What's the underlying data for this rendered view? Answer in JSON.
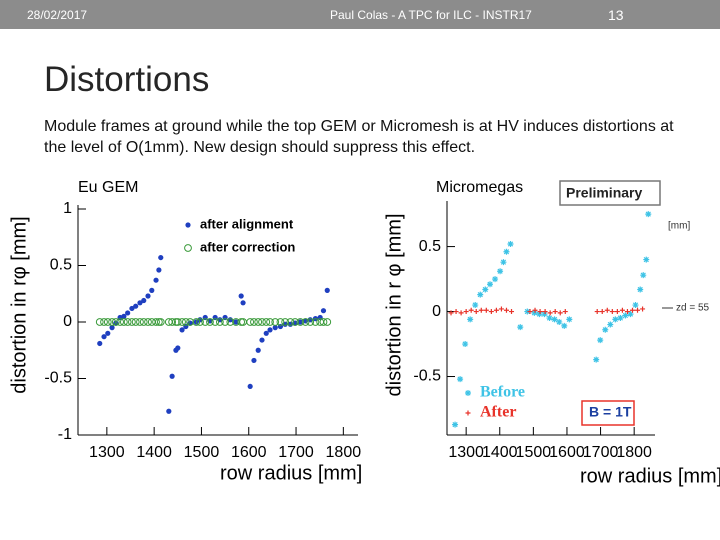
{
  "header": {
    "date": "28/02/2017",
    "footer": "Paul Colas - A TPC for ILC - INSTR17",
    "page": "13"
  },
  "title": "Distortions",
  "body": "Module frames at ground while the top GEM or Micromesh is at HV induces distortions at the level of O(1mm). New design should suppress this effect.",
  "chart_data": [
    {
      "type": "scatter",
      "title": "Eu GEM",
      "x_label": "row radius [mm]",
      "y_label": "distortion in rφ [mm]",
      "xlim": [
        1239,
        1831
      ],
      "xticks": [
        1300,
        1400,
        1500,
        1600,
        1700,
        1800
      ],
      "ylim": [
        -1,
        1
      ],
      "yticks": [
        -1,
        -0.5,
        0,
        0.5,
        1
      ],
      "legend": "upper right",
      "x": [
        1285,
        1294,
        1302,
        1311,
        1319,
        1328,
        1336,
        1344,
        1353,
        1361,
        1370,
        1378,
        1387,
        1395,
        1404,
        1410,
        1414,
        1431,
        1438,
        1446,
        1450,
        1459,
        1467,
        1476,
        1489,
        1497,
        1508,
        1518,
        1529,
        1539,
        1550,
        1561,
        1573,
        1584,
        1588,
        1603,
        1611,
        1620,
        1628,
        1637,
        1645,
        1656,
        1667,
        1677,
        1688,
        1698,
        1709,
        1720,
        1730,
        1741,
        1751,
        1758,
        1766
      ],
      "series": [
        {
          "name": "after alignment",
          "color": "#1f3fc0",
          "marker": "dot",
          "values": [
            -0.19,
            -0.13,
            -0.1,
            -0.05,
            -0.01,
            0.04,
            0.05,
            0.08,
            0.12,
            0.14,
            0.17,
            0.19,
            0.23,
            0.28,
            0.37,
            0.46,
            0.57,
            -0.79,
            -0.48,
            -0.25,
            -0.23,
            -0.07,
            -0.04,
            -0.01,
            0,
            0.02,
            0.04,
            0.01,
            0.04,
            0.02,
            0.04,
            0.02,
            0,
            0.23,
            0.17,
            -0.57,
            -0.34,
            -0.25,
            -0.16,
            -0.1,
            -0.07,
            -0.05,
            -0.04,
            -0.02,
            -0.02,
            -0.01,
            0,
            0.01,
            0.02,
            0.03,
            0.04,
            0.1,
            0.28
          ]
        },
        {
          "name": "after correction",
          "color": "#3a9a3a",
          "marker": "circle",
          "values": [
            0,
            0,
            0,
            0,
            0,
            0,
            0,
            0,
            0,
            0,
            0,
            0,
            0,
            0,
            0,
            0,
            0,
            0,
            0,
            0,
            0,
            0,
            0,
            0,
            0,
            0,
            0,
            0,
            0,
            0,
            0,
            0,
            0,
            0,
            0,
            0,
            0,
            0,
            0,
            0,
            0,
            0,
            0,
            0,
            0,
            0,
            0,
            0,
            0,
            0,
            0,
            0,
            0
          ]
        }
      ]
    },
    {
      "type": "scatter",
      "title": "Micromegas",
      "x_label": "row radius [mm]",
      "y_label": "distortion in r φ [mm]",
      "xlim": [
        1243,
        1862
      ],
      "xticks": [
        1300,
        1400,
        1500,
        1600,
        1700,
        1800
      ],
      "ylim": [
        -0.95,
        0.82
      ],
      "yticks": [
        -0.5,
        0,
        0.5
      ],
      "legend": "lower left",
      "annotations": [
        "Preliminary",
        "[mm]",
        "zd = 55",
        "B = 1T"
      ],
      "series": [
        {
          "name": "Before",
          "color": "#3ec3e6",
          "marker": "star",
          "x": [
            1267,
            1282,
            1297,
            1312,
            1327,
            1342,
            1357,
            1371,
            1386,
            1401,
            1411,
            1420,
            1432,
            1461,
            1482,
            1503,
            1518,
            1533,
            1548,
            1563,
            1577,
            1592,
            1607,
            1687,
            1699,
            1714,
            1729,
            1744,
            1759,
            1774,
            1789,
            1804,
            1818,
            1827,
            1836,
            1842
          ],
          "values": [
            -0.87,
            -0.52,
            -0.25,
            -0.06,
            0.05,
            0.13,
            0.17,
            0.21,
            0.25,
            0.31,
            0.38,
            0.46,
            0.52,
            -0.12,
            0,
            -0.01,
            -0.02,
            -0.02,
            -0.05,
            -0.06,
            -0.08,
            -0.11,
            -0.06,
            -0.37,
            -0.22,
            -0.14,
            -0.1,
            -0.06,
            -0.05,
            -0.03,
            -0.02,
            0.05,
            0.17,
            0.28,
            0.4,
            0.75
          ]
        },
        {
          "name": "After",
          "color": "#e8332a",
          "marker": "cross",
          "x": [
            1255,
            1270,
            1285,
            1300,
            1315,
            1330,
            1345,
            1360,
            1375,
            1390,
            1405,
            1420,
            1435,
            1490,
            1505,
            1520,
            1535,
            1550,
            1565,
            1580,
            1595,
            1690,
            1705,
            1720,
            1735,
            1750,
            1765,
            1780,
            1795,
            1810,
            1825
          ],
          "values": [
            -0.01,
            0,
            -0.01,
            0,
            0.01,
            0,
            0.01,
            0.01,
            0,
            0.01,
            0.02,
            0.01,
            0,
            0,
            0.01,
            0,
            0,
            -0.01,
            0,
            -0.01,
            0,
            0,
            0,
            0.01,
            0,
            0,
            0.01,
            0,
            0.01,
            0.01,
            0.02
          ]
        }
      ]
    }
  ]
}
